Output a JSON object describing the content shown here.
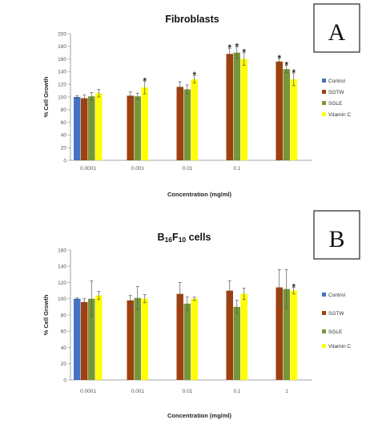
{
  "colors": [
    "#4472c4",
    "#a0400e",
    "#77963a",
    "#ffff00"
  ],
  "chart_data": [
    {
      "type": "bar",
      "panel_label": "A",
      "title": "Fibroblasts",
      "xlabel": "Concentration (mg/ml)",
      "ylabel": "% Cell Growth",
      "ylim": [
        0,
        200
      ],
      "yticks": [
        "0",
        "20",
        "40",
        "60",
        "80",
        "100",
        "120",
        "140",
        "160",
        "180",
        "200"
      ],
      "categories": [
        "0.0001",
        "0.001",
        "0.01",
        "0.1",
        ""
      ],
      "legend_position": "right",
      "series": [
        {
          "name": "Control",
          "values": [
            100,
            null,
            null,
            null,
            null
          ],
          "errors": [
            2,
            null,
            null,
            null,
            null
          ],
          "significant": [
            false,
            false,
            false,
            false,
            false
          ]
        },
        {
          "name": "SGTW",
          "values": [
            98,
            102,
            116,
            168,
            156
          ],
          "errors": [
            5,
            6,
            8,
            9,
            5
          ],
          "significant": [
            false,
            false,
            false,
            true,
            true
          ]
        },
        {
          "name": "SGLE",
          "values": [
            101,
            101,
            112,
            170,
            144
          ],
          "errors": [
            6,
            5,
            7,
            9,
            6
          ],
          "significant": [
            false,
            false,
            false,
            true,
            true
          ]
        },
        {
          "name": "Vitamin C",
          "values": [
            106,
            115,
            128,
            160,
            128
          ],
          "errors": [
            6,
            10,
            6,
            10,
            10
          ],
          "significant": [
            false,
            true,
            true,
            true,
            true
          ]
        }
      ]
    },
    {
      "type": "bar",
      "panel_label": "B",
      "title": "B16F10 cells",
      "title_parts": {
        "main": "B",
        "sub1": "16",
        "mid": "F",
        "sub2": "10",
        "rest": " cells"
      },
      "xlabel": "Concentration (mg/ml)",
      "ylabel": "% Cell Growth",
      "ylim": [
        0,
        160
      ],
      "yticks": [
        "0",
        "20",
        "40",
        "60",
        "80",
        "100",
        "120",
        "140",
        "160"
      ],
      "categories": [
        "0.0001",
        "0.001",
        "0.01",
        "0.1",
        "1"
      ],
      "legend_position": "right",
      "series": [
        {
          "name": "Control",
          "values": [
            100,
            null,
            null,
            null,
            null
          ],
          "errors": [
            1,
            null,
            null,
            null,
            null
          ],
          "significant": [
            false,
            false,
            false,
            false,
            false
          ]
        },
        {
          "name": "SGTW",
          "values": [
            96,
            98,
            106,
            110,
            114
          ],
          "errors": [
            4,
            6,
            14,
            12,
            22
          ],
          "significant": [
            false,
            false,
            false,
            false,
            false
          ]
        },
        {
          "name": "SGLE",
          "values": [
            100,
            101,
            94,
            90,
            112
          ],
          "errors": [
            22,
            14,
            8,
            8,
            24
          ],
          "significant": [
            false,
            false,
            false,
            false,
            false
          ]
        },
        {
          "name": "Vitamin C",
          "values": [
            104,
            100,
            100,
            106,
            110
          ],
          "errors": [
            5,
            5,
            2,
            7,
            4
          ],
          "significant": [
            false,
            false,
            false,
            false,
            true
          ]
        }
      ]
    }
  ]
}
